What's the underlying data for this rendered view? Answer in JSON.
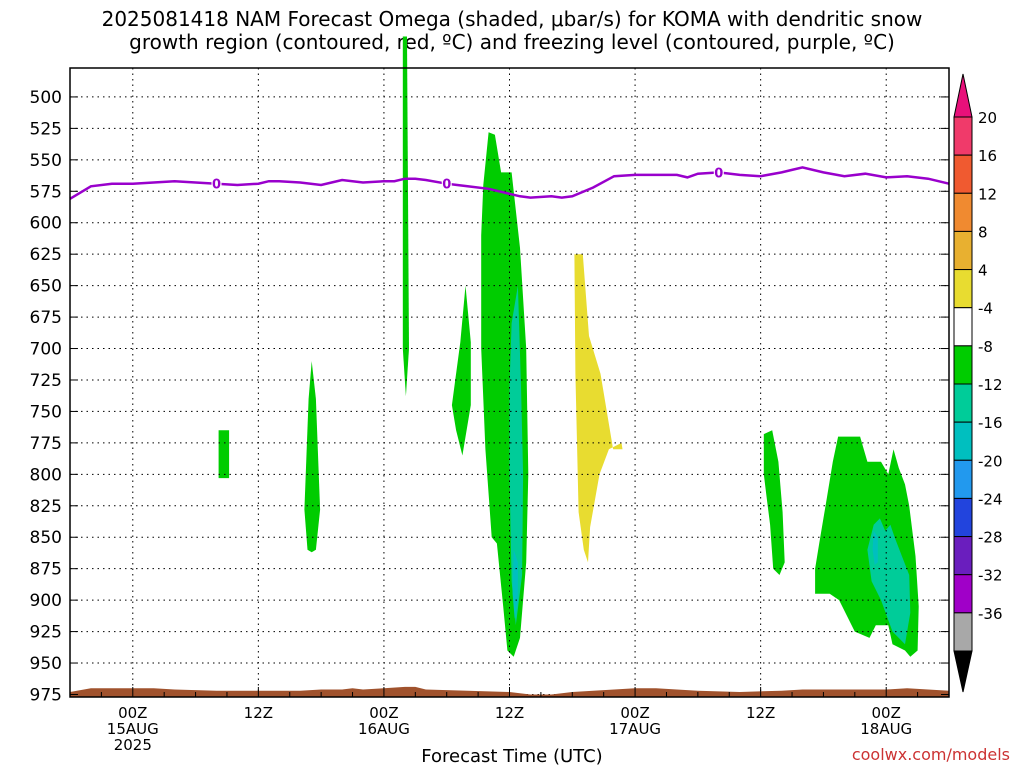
{
  "title_lines": [
    "2025081418 NAM Forecast Omega (shaded, μbar/s) for KOMA with dendritic snow",
    "growth region (contoured, red, ºC) and freezing level (contoured, purple, ºC)"
  ],
  "credit": "coolwx.com/models",
  "chart_data": {
    "type": "heatmap",
    "title": "2025081418 NAM Forecast Omega (shaded, μbar/s) for KOMA with dendritic snow growth region (contoured, red, ºC) and freezing level (contoured, purple, ºC)",
    "xlabel": "Forecast Time (UTC)",
    "ylabel": "",
    "x_unit": "hours since 2025-08-14 18Z",
    "xlim": [
      0,
      84
    ],
    "ylim": [
      977,
      477
    ],
    "y_ticks": [
      500,
      525,
      550,
      575,
      600,
      625,
      650,
      675,
      700,
      725,
      750,
      775,
      800,
      825,
      850,
      875,
      900,
      925,
      950,
      975
    ],
    "x_ticks": [
      {
        "x": 6,
        "lines": [
          "00Z",
          "15AUG",
          "2025"
        ]
      },
      {
        "x": 18,
        "lines": [
          "12Z"
        ]
      },
      {
        "x": 30,
        "lines": [
          "00Z",
          "16AUG"
        ]
      },
      {
        "x": 42,
        "lines": [
          "12Z"
        ]
      },
      {
        "x": 54,
        "lines": [
          "00Z",
          "17AUG"
        ]
      },
      {
        "x": 66,
        "lines": [
          "12Z"
        ]
      },
      {
        "x": 78,
        "lines": [
          "00Z",
          "18AUG"
        ]
      }
    ],
    "colorbar": {
      "labels": [
        "20",
        "16",
        "12",
        "8",
        "4",
        "-4",
        "-8",
        "-12",
        "-16",
        "-20",
        "-24",
        "-28",
        "-32",
        "-36"
      ],
      "colors": [
        "#f03a6a",
        "#f05a30",
        "#f08a30",
        "#e8b030",
        "#e8dc30",
        "#ffffff",
        "#00cc00",
        "#00cc99",
        "#00bfbf",
        "#2299ee",
        "#2244dd",
        "#6a1ebe",
        "#a000c8",
        "#a8a8a8"
      ],
      "top_arrow_color": "#e8107a",
      "bottom_arrow_color": "#000000"
    },
    "freezing_level": {
      "label": "0",
      "color": "#9900cc",
      "x": [
        0,
        2,
        4,
        6,
        8,
        10,
        12,
        14,
        16,
        18,
        19,
        20,
        22,
        24,
        25,
        26,
        28,
        30,
        31,
        32,
        33,
        34,
        36,
        37,
        38,
        40,
        42,
        43,
        44,
        46,
        47,
        48,
        50,
        52,
        54,
        56,
        58,
        59,
        60,
        62,
        64,
        66,
        68,
        69,
        70,
        72,
        74,
        76,
        78,
        80,
        82,
        84
      ],
      "y": [
        581,
        571,
        569,
        569,
        568,
        567,
        568,
        569,
        570,
        569,
        567,
        567,
        568,
        570,
        568,
        566,
        568,
        567,
        567,
        565,
        565,
        566,
        569,
        570,
        571,
        573,
        577,
        579,
        580,
        579,
        580,
        579,
        572,
        563,
        562,
        562,
        562,
        564,
        561,
        560,
        562,
        563,
        560,
        558,
        556,
        560,
        563,
        561,
        564,
        563,
        565,
        569
      ],
      "label_x": [
        14,
        36,
        62
      ]
    },
    "omega_regions": [
      {
        "level": "-8",
        "points": [
          [
            31.8,
            452
          ],
          [
            32.2,
            452
          ],
          [
            32.4,
            700
          ],
          [
            32.1,
            738
          ],
          [
            31.8,
            700
          ]
        ]
      },
      {
        "level": "-8",
        "points": [
          [
            14.2,
            765
          ],
          [
            15.2,
            765
          ],
          [
            15.2,
            803
          ],
          [
            14.2,
            803
          ]
        ]
      },
      {
        "level": "-8",
        "points": [
          [
            22.4,
            828
          ],
          [
            22.8,
            740
          ],
          [
            23.1,
            710
          ],
          [
            23.5,
            740
          ],
          [
            23.9,
            828
          ],
          [
            23.5,
            860
          ],
          [
            23.1,
            862
          ],
          [
            22.7,
            860
          ]
        ]
      },
      {
        "level": "-8",
        "points": [
          [
            36.5,
            745
          ],
          [
            37.3,
            695
          ],
          [
            37.8,
            650
          ],
          [
            38.3,
            695
          ],
          [
            38.3,
            745
          ],
          [
            37.5,
            785
          ],
          [
            36.9,
            765
          ]
        ]
      },
      {
        "level": "-8",
        "points": [
          [
            39.3,
            610
          ],
          [
            39.5,
            570
          ],
          [
            40.0,
            528
          ],
          [
            40.6,
            530
          ],
          [
            41.2,
            560
          ],
          [
            42.2,
            560
          ],
          [
            43.0,
            620
          ],
          [
            43.6,
            700
          ],
          [
            43.8,
            800
          ],
          [
            43.6,
            870
          ],
          [
            43.0,
            930
          ],
          [
            42.4,
            945
          ],
          [
            41.8,
            940
          ],
          [
            41.4,
            905
          ],
          [
            40.8,
            855
          ],
          [
            40.3,
            850
          ],
          [
            39.7,
            780
          ],
          [
            39.3,
            700
          ]
        ]
      },
      {
        "level": "4",
        "points": [
          [
            48.2,
            625
          ],
          [
            49.0,
            625
          ],
          [
            49.6,
            690
          ],
          [
            50.7,
            720
          ],
          [
            51.9,
            780
          ],
          [
            52.8,
            780
          ],
          [
            52.7,
            775
          ],
          [
            51.5,
            780
          ],
          [
            50.6,
            800
          ],
          [
            49.7,
            842
          ],
          [
            49.5,
            870
          ],
          [
            49.1,
            860
          ],
          [
            48.6,
            830
          ],
          [
            48.3,
            720
          ]
        ]
      },
      {
        "level": "-8",
        "points": [
          [
            66.3,
            768
          ],
          [
            67.1,
            765
          ],
          [
            67.7,
            790
          ],
          [
            68.1,
            830
          ],
          [
            68.3,
            870
          ],
          [
            67.8,
            880
          ],
          [
            67.2,
            875
          ],
          [
            66.9,
            840
          ],
          [
            66.6,
            820
          ],
          [
            66.3,
            800
          ]
        ]
      },
      {
        "level": "-8",
        "points": [
          [
            71.2,
            875
          ],
          [
            71.6,
            855
          ],
          [
            72.3,
            820
          ],
          [
            72.9,
            790
          ],
          [
            73.4,
            770
          ],
          [
            75.5,
            770
          ],
          [
            76.2,
            790
          ],
          [
            77.5,
            790
          ],
          [
            78.2,
            800
          ],
          [
            78.7,
            780
          ],
          [
            79.2,
            795
          ],
          [
            79.8,
            808
          ],
          [
            80.2,
            825
          ],
          [
            80.8,
            865
          ],
          [
            81.1,
            905
          ],
          [
            81.0,
            940
          ],
          [
            80.3,
            945
          ],
          [
            79.8,
            940
          ],
          [
            78.6,
            935
          ],
          [
            78.2,
            920
          ],
          [
            77.0,
            920
          ],
          [
            76.4,
            930
          ],
          [
            75.0,
            925
          ],
          [
            73.5,
            900
          ],
          [
            72.6,
            895
          ],
          [
            71.2,
            895
          ]
        ]
      },
      {
        "level": "-12",
        "points": [
          [
            42.2,
            680
          ],
          [
            42.8,
            650
          ],
          [
            43.1,
            730
          ],
          [
            43.3,
            800
          ],
          [
            43.2,
            880
          ],
          [
            42.6,
            920
          ],
          [
            42.2,
            885
          ],
          [
            42.0,
            800
          ],
          [
            42.0,
            730
          ]
        ]
      },
      {
        "level": "-12",
        "points": [
          [
            76.2,
            860
          ],
          [
            76.8,
            840
          ],
          [
            77.4,
            835
          ],
          [
            77.9,
            845
          ],
          [
            78.4,
            840
          ],
          [
            78.8,
            850
          ],
          [
            79.5,
            865
          ],
          [
            80.2,
            880
          ],
          [
            80.3,
            910
          ],
          [
            79.8,
            935
          ],
          [
            78.6,
            925
          ],
          [
            77.5,
            900
          ],
          [
            76.6,
            885
          ]
        ]
      },
      {
        "level": "-16",
        "points": [
          [
            42.4,
            860
          ],
          [
            42.8,
            870
          ],
          [
            42.8,
            900
          ],
          [
            42.5,
            915
          ],
          [
            42.3,
            895
          ]
        ]
      },
      {
        "level": "-16",
        "points": [
          [
            76.8,
            845
          ],
          [
            77.2,
            850
          ],
          [
            77.2,
            870
          ],
          [
            76.9,
            872
          ],
          [
            76.7,
            860
          ]
        ]
      }
    ],
    "terrain": {
      "color": "#a0522d",
      "x": [
        0,
        2,
        4,
        6,
        8,
        10,
        14,
        18,
        22,
        24,
        26,
        27,
        28,
        30,
        32,
        33,
        34,
        38,
        42,
        44,
        46,
        48,
        52,
        54,
        56,
        58,
        60,
        64,
        68,
        70,
        72,
        74,
        78,
        80,
        82,
        84
      ],
      "top": [
        973,
        970,
        970,
        970,
        970,
        971,
        972,
        972,
        972,
        971,
        971,
        970,
        971,
        970,
        969,
        969,
        971,
        972,
        973,
        975,
        975,
        973,
        971,
        970,
        970,
        971,
        972,
        973,
        972,
        971,
        971,
        971,
        971,
        970,
        971,
        972
      ]
    }
  }
}
